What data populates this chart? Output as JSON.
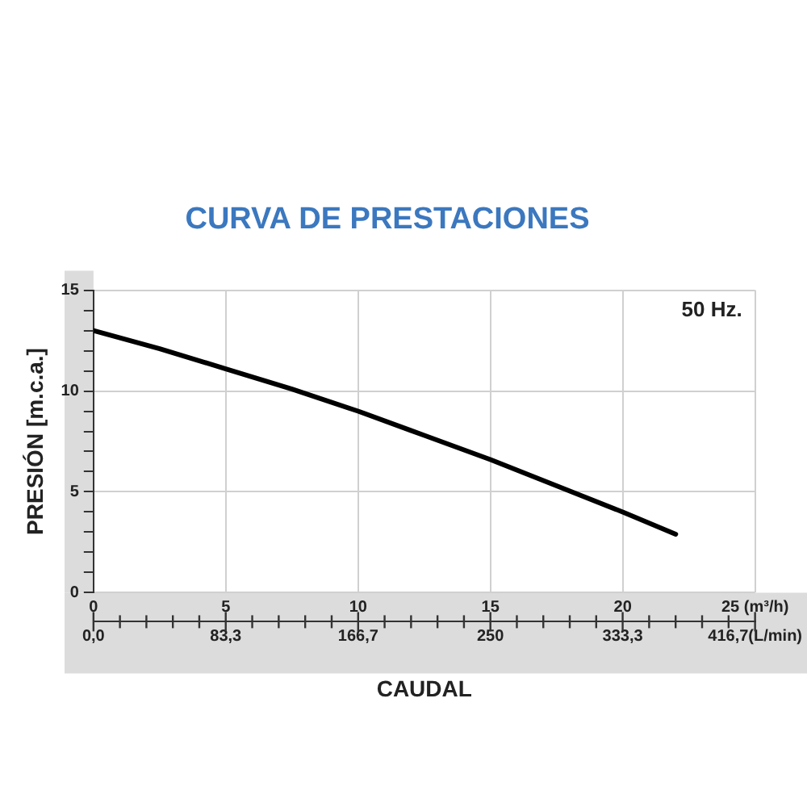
{
  "chart_data": {
    "type": "line",
    "title": "CURVA DE PRESTACIONES",
    "xlabel": "CAUDAL",
    "ylabel": "PRESIÓN [m.c.a.]",
    "annotations": [
      "50 Hz."
    ],
    "x": [
      0,
      2.5,
      5,
      7.5,
      10,
      12.5,
      15,
      17.5,
      20,
      22
    ],
    "series": [
      {
        "color": "#000000",
        "values": [
          13.0,
          12.1,
          11.1,
          10.1,
          9.0,
          7.8,
          6.6,
          5.3,
          4.0,
          2.9
        ]
      }
    ],
    "xlim": [
      0,
      25
    ],
    "xticks": [
      0,
      5,
      10,
      15,
      20,
      {
        "value": 25,
        "label": "25 (m³/h)"
      }
    ],
    "x2lim": [
      0,
      416.7
    ],
    "x2ticks": [
      {
        "value": 0,
        "label": "0,0"
      },
      {
        "value": 83.3,
        "label": "83,3"
      },
      {
        "value": 166.7,
        "label": "166,7"
      },
      {
        "value": 250,
        "label": "250"
      },
      {
        "value": 333.3,
        "label": "333,3"
      },
      {
        "value": 416.7,
        "label": "416,7(L/min)"
      }
    ],
    "ylim": [
      0,
      15
    ],
    "yticks": [
      0,
      {
        "value": 1,
        "label": null
      },
      {
        "value": 2,
        "label": null
      },
      {
        "value": 3,
        "label": null
      },
      {
        "value": 4,
        "label": null
      },
      5,
      {
        "value": 6,
        "label": null
      },
      {
        "value": 7,
        "label": null
      },
      {
        "value": 8,
        "label": null
      },
      {
        "value": 9,
        "label": null
      },
      10,
      {
        "value": 11,
        "label": null
      },
      {
        "value": 12,
        "label": null
      },
      {
        "value": 13,
        "label": null
      },
      {
        "value": 14,
        "label": null
      },
      15
    ],
    "grid": true,
    "legend": false,
    "marker": "none",
    "line_style": "solid"
  }
}
